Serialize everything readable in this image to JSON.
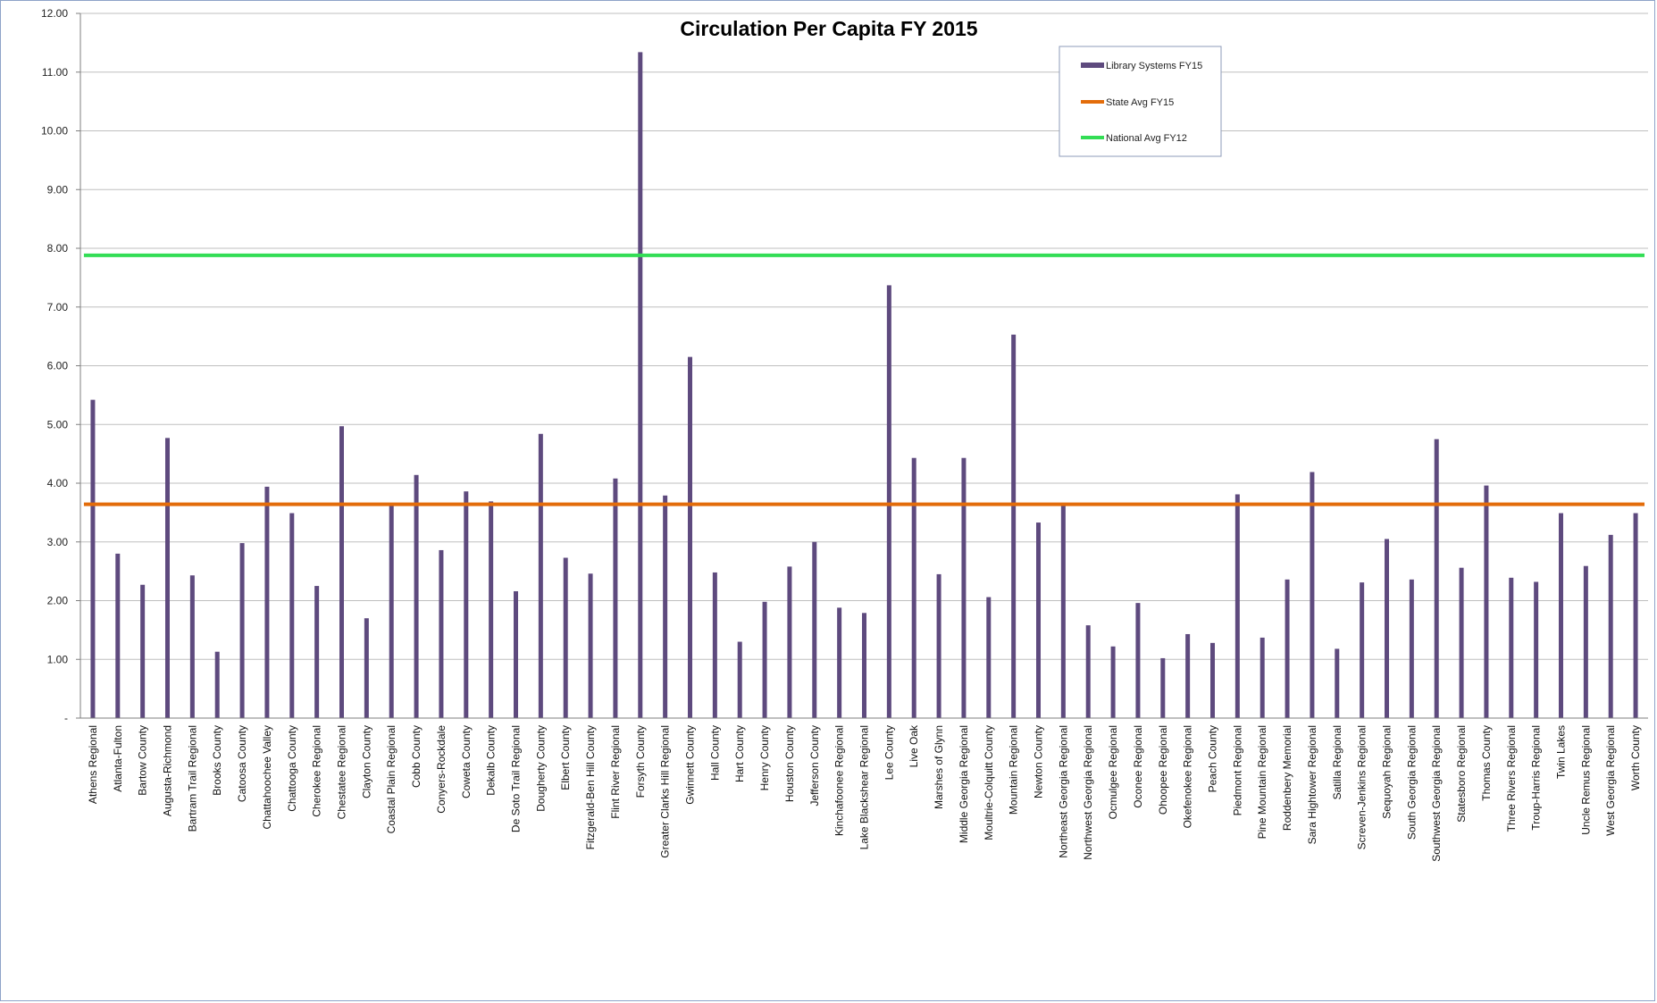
{
  "chart_data": {
    "type": "bar",
    "title": "Circulation Per Capita FY 2015",
    "xlabel": "",
    "ylabel": "",
    "ylim": [
      0,
      12
    ],
    "yticks": [
      "-",
      "1.00",
      "2.00",
      "3.00",
      "4.00",
      "5.00",
      "6.00",
      "7.00",
      "8.00",
      "9.00",
      "10.00",
      "11.00",
      "12.00"
    ],
    "grid": true,
    "legend_position": "top-right",
    "categories": [
      "Athens Regional",
      "Atlanta-Fulton",
      "Bartow County",
      "Augusta-Richmond",
      "Bartram Trail Regional",
      "Brooks County",
      "Catoosa County",
      "Chattahoochee Valley",
      "Chattooga County",
      "Cherokee Regional",
      "Chestatee Regional",
      "Clayton County",
      "Coastal Plain Regional",
      "Cobb County",
      "Conyers-Rockdale",
      "Coweta County",
      "Dekalb County",
      "De Soto Trail Regional",
      "Dougherty County",
      "Elbert County",
      "Fitzgerald-Ben Hill County",
      "Flint River Regional",
      "Forsyth County",
      "Greater Clarks Hill Regional",
      "Gwinnett County",
      "Hall County",
      "Hart County",
      "Henry County",
      "Houston County",
      "Jefferson County",
      "Kinchafoonee Regional",
      "Lake Blackshear Regional",
      "Lee County",
      "Live Oak",
      "Marshes of Glynn",
      "Middle Georgia Regional",
      "Moultrie-Colquitt County",
      "Mountain Regional",
      "Newton County",
      "Northeast Georgia Regional",
      "Northwest Georgia Regional",
      "Ocmulgee Regional",
      "Oconee Regional",
      "Ohoopee Regional",
      "Okefenokee Regional",
      "Peach County",
      "Piedmont Regional",
      "Pine Mountain Regional",
      "Roddenbery Memorial",
      "Sara Hightower Regional",
      "Satilla Regional",
      "Screven-Jenkins Regional",
      "Sequoyah Regional",
      "South Georgia Regional",
      "Southwest Georgia Regional",
      "Statesboro Regional",
      "Thomas County",
      "Three Rivers Regional",
      "Troup-Harris Regional",
      "Twin Lakes",
      "Uncle Remus Regional",
      "West Georgia Regional",
      "Worth County"
    ],
    "series": [
      {
        "name": "Library Systems FY15",
        "type": "bar",
        "color": "#5e4a7e",
        "values": [
          5.42,
          2.8,
          2.27,
          4.77,
          2.43,
          1.13,
          2.98,
          3.94,
          3.49,
          2.25,
          4.97,
          1.7,
          3.62,
          4.14,
          2.86,
          3.86,
          3.69,
          2.16,
          4.84,
          2.73,
          2.46,
          4.08,
          11.34,
          3.79,
          6.15,
          2.48,
          1.3,
          1.98,
          2.58,
          3.0,
          1.88,
          1.79,
          7.37,
          4.43,
          2.45,
          4.43,
          2.06,
          6.53,
          3.33,
          3.62,
          1.58,
          1.22,
          1.96,
          1.02,
          1.43,
          1.28,
          3.81,
          1.37,
          2.36,
          4.19,
          1.18,
          2.31,
          3.05,
          2.36,
          4.75,
          2.56,
          3.96,
          2.39,
          2.32,
          3.49,
          2.59,
          3.12,
          3.49
        ]
      },
      {
        "name": "State Avg FY15",
        "type": "line",
        "color": "#e36c0a",
        "value": 3.64
      },
      {
        "name": "National Avg FY12",
        "type": "line",
        "color": "#33dd55",
        "value": 7.88
      }
    ]
  }
}
